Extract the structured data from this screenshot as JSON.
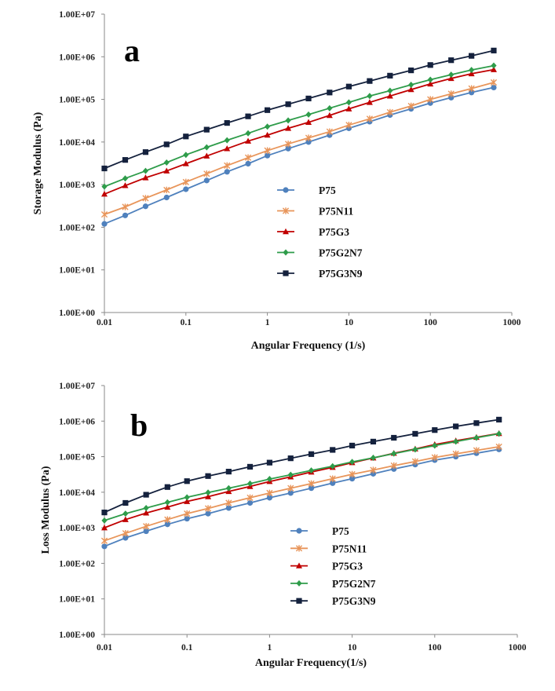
{
  "chart_data": [
    {
      "type": "line",
      "panel_label": "a",
      "xlabel": "Angular Frequency (1/s)",
      "ylabel": "Storage Modulus (Pa)",
      "xscale": "log",
      "yscale": "log",
      "xlim": [
        0.01,
        1000
      ],
      "ylim": [
        1,
        10000000
      ],
      "x_ticks": [
        "0.01",
        "0.1",
        "1",
        "10",
        "100",
        "1000"
      ],
      "y_ticks": [
        "1.00E+00",
        "1.00E+01",
        "1.00E+02",
        "1.00E+03",
        "1.00E+04",
        "1.00E+05",
        "1.00E+06",
        "1.00E+07"
      ],
      "legend_position": "lower-center",
      "grid": false,
      "x": [
        0.01,
        0.018,
        0.032,
        0.058,
        0.1,
        0.18,
        0.32,
        0.58,
        1,
        1.8,
        3.2,
        5.8,
        10,
        18,
        32,
        58,
        100,
        180,
        320,
        600
      ],
      "series": [
        {
          "name": "P75",
          "color": "#4f81bd",
          "marker": "circle",
          "values": [
            120,
            190,
            310,
            500,
            780,
            1250,
            2000,
            3100,
            4800,
            7000,
            10000,
            14500,
            21000,
            30000,
            43000,
            60000,
            82000,
            110000,
            145000,
            190000
          ]
        },
        {
          "name": "P75N11",
          "color": "#e8955a",
          "marker": "star",
          "values": [
            200,
            300,
            480,
            750,
            1150,
            1800,
            2800,
            4300,
            6300,
            9000,
            12500,
            17500,
            25000,
            35000,
            50000,
            70000,
            100000,
            135000,
            180000,
            250000
          ]
        },
        {
          "name": "P75G3",
          "color": "#c00000",
          "marker": "triangle",
          "values": [
            600,
            950,
            1450,
            2100,
            3100,
            4700,
            7000,
            10500,
            14500,
            21000,
            29000,
            42000,
            60000,
            85000,
            120000,
            170000,
            230000,
            310000,
            400000,
            500000
          ]
        },
        {
          "name": "P75G2N7",
          "color": "#2e9c4a",
          "marker": "diamond",
          "values": [
            900,
            1400,
            2100,
            3300,
            5000,
            7500,
            11000,
            16000,
            23000,
            32000,
            44000,
            62000,
            85000,
            120000,
            160000,
            220000,
            290000,
            380000,
            490000,
            620000
          ]
        },
        {
          "name": "P75G3N9",
          "color": "#14213d",
          "marker": "square",
          "values": [
            2400,
            3800,
            5800,
            8800,
            13500,
            19500,
            28000,
            40000,
            56000,
            77000,
            105000,
            145000,
            200000,
            270000,
            360000,
            480000,
            640000,
            830000,
            1050000,
            1400000
          ]
        }
      ]
    },
    {
      "type": "line",
      "panel_label": "b",
      "xlabel": "Angular Frequency(1/s)",
      "ylabel": "Loss Modulus (Pa)",
      "xscale": "log",
      "yscale": "log",
      "xlim": [
        0.01,
        1000
      ],
      "ylim": [
        1,
        10000000
      ],
      "x_ticks": [
        "0.01",
        "0.1",
        "1",
        "10",
        "100",
        "1000"
      ],
      "y_ticks": [
        "1.00E+00",
        "1.00E+01",
        "1.00E+02",
        "1.00E+03",
        "1.00E+04",
        "1.00E+05",
        "1.00E+06",
        "1.00E+07"
      ],
      "legend_position": "lower-center",
      "grid": false,
      "x": [
        0.01,
        0.018,
        0.032,
        0.058,
        0.1,
        0.18,
        0.32,
        0.58,
        1,
        1.8,
        3.2,
        5.8,
        10,
        18,
        32,
        58,
        100,
        180,
        320,
        600
      ],
      "series": [
        {
          "name": "P75",
          "color": "#4f81bd",
          "marker": "circle",
          "values": [
            300,
            520,
            800,
            1250,
            1800,
            2500,
            3600,
            5000,
            7000,
            9500,
            13000,
            18000,
            24000,
            33000,
            45000,
            60000,
            80000,
            100000,
            125000,
            160000
          ]
        },
        {
          "name": "P75N11",
          "color": "#e8955a",
          "marker": "star",
          "values": [
            430,
            700,
            1100,
            1700,
            2500,
            3500,
            5000,
            7000,
            9500,
            13000,
            17500,
            24000,
            32000,
            42000,
            56000,
            73000,
            95000,
            120000,
            150000,
            190000
          ]
        },
        {
          "name": "P75G3",
          "color": "#c00000",
          "marker": "triangle",
          "values": [
            1000,
            1700,
            2600,
            3800,
            5500,
            7500,
            10500,
            14500,
            20000,
            27000,
            37000,
            50000,
            68000,
            92000,
            125000,
            165000,
            220000,
            280000,
            350000,
            450000
          ]
        },
        {
          "name": "P75G2N7",
          "color": "#2e9c4a",
          "marker": "diamond",
          "values": [
            1600,
            2500,
            3600,
            5200,
            7200,
            9800,
            13000,
            17500,
            23500,
            31000,
            41000,
            54000,
            71000,
            93000,
            122000,
            160000,
            205000,
            265000,
            340000,
            440000
          ]
        },
        {
          "name": "P75G3N9",
          "color": "#14213d",
          "marker": "square",
          "values": [
            2700,
            5000,
            8500,
            14000,
            20500,
            28500,
            38000,
            52000,
            68000,
            90000,
            118000,
            155000,
            205000,
            265000,
            340000,
            440000,
            560000,
            710000,
            880000,
            1100000
          ]
        }
      ]
    }
  ]
}
